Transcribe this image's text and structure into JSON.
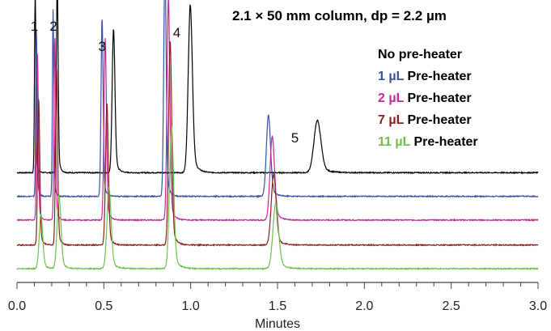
{
  "chart_data": {
    "type": "line",
    "title": "2.1 × 50 mm column, dp = 2.2 µm",
    "xlabel": "Minutes",
    "ylabel": "",
    "xlim": [
      0.0,
      3.0
    ],
    "xticks": [
      0.0,
      0.5,
      1.0,
      1.5,
      2.0,
      2.5,
      3.0
    ],
    "xtick_labels": [
      "0.0",
      "0.5",
      "1.0",
      "1.5",
      "2.0",
      "2.5",
      "3.0"
    ],
    "grid": false,
    "legend_position": "top-right",
    "peak_labels": [
      {
        "text": "1",
        "x": 0.1
      },
      {
        "text": "2",
        "x": 0.21
      },
      {
        "text": "3",
        "x": 0.49
      },
      {
        "text": "4",
        "x": 0.92
      },
      {
        "text": "5",
        "x": 1.6
      }
    ],
    "series": [
      {
        "legend": [
          {
            "text": "No pre-heater",
            "color": "#000000"
          }
        ],
        "color": "#000000",
        "baseline": 0.405,
        "peaks": [
          {
            "t": 0.105,
            "height": 0.69,
            "width": 0.004
          },
          {
            "t": 0.232,
            "height": 0.74,
            "width": 0.005
          },
          {
            "t": 0.556,
            "height": 0.55,
            "width": 0.008
          },
          {
            "t": 0.998,
            "height": 0.64,
            "width": 0.012
          },
          {
            "t": 1.73,
            "height": 0.2,
            "width": 0.02
          }
        ]
      },
      {
        "legend": [
          {
            "text": "1 µL",
            "color": "#3b4fa3"
          },
          {
            "text": " Pre-heater",
            "color": "#000000"
          }
        ],
        "color": "#3b4fa3",
        "baseline": 0.315,
        "peaks": [
          {
            "t": 0.112,
            "height": 0.64,
            "width": 0.004
          },
          {
            "t": 0.208,
            "height": 0.71,
            "width": 0.004
          },
          {
            "t": 0.49,
            "height": 0.68,
            "width": 0.006
          },
          {
            "t": 0.852,
            "height": 0.88,
            "width": 0.007
          },
          {
            "t": 1.448,
            "height": 0.31,
            "width": 0.012
          }
        ]
      },
      {
        "legend": [
          {
            "text": "2 µL",
            "color": "#c12c9a"
          },
          {
            "text": " Pre-heater",
            "color": "#000000"
          }
        ],
        "color": "#c12c9a",
        "baseline": 0.225,
        "peaks": [
          {
            "t": 0.118,
            "height": 0.63,
            "width": 0.005
          },
          {
            "t": 0.218,
            "height": 0.7,
            "width": 0.005
          },
          {
            "t": 0.508,
            "height": 0.69,
            "width": 0.007
          },
          {
            "t": 0.872,
            "height": 0.85,
            "width": 0.008
          },
          {
            "t": 1.47,
            "height": 0.32,
            "width": 0.013
          }
        ]
      },
      {
        "legend": [
          {
            "text": "7 µL",
            "color": "#8b2020"
          },
          {
            "text": " Pre-heater",
            "color": "#000000"
          }
        ],
        "color": "#8b2020",
        "baseline": 0.13,
        "peaks": [
          {
            "t": 0.125,
            "height": 0.56,
            "width": 0.006
          },
          {
            "t": 0.228,
            "height": 0.68,
            "width": 0.006
          },
          {
            "t": 0.518,
            "height": 0.54,
            "width": 0.008
          },
          {
            "t": 0.882,
            "height": 0.78,
            "width": 0.009
          },
          {
            "t": 1.478,
            "height": 0.27,
            "width": 0.014
          }
        ]
      },
      {
        "legend": [
          {
            "text": "11 µL",
            "color": "#6cc04a"
          },
          {
            "text": " Pre-heater",
            "color": "#000000"
          }
        ],
        "color": "#6cc04a",
        "baseline": 0.04,
        "peaks": [
          {
            "t": 0.138,
            "height": 0.21,
            "width": 0.01
          },
          {
            "t": 0.242,
            "height": 0.28,
            "width": 0.011
          },
          {
            "t": 0.53,
            "height": 0.31,
            "width": 0.012
          },
          {
            "t": 0.89,
            "height": 0.54,
            "width": 0.012
          },
          {
            "t": 1.49,
            "height": 0.25,
            "width": 0.016
          }
        ]
      }
    ]
  }
}
